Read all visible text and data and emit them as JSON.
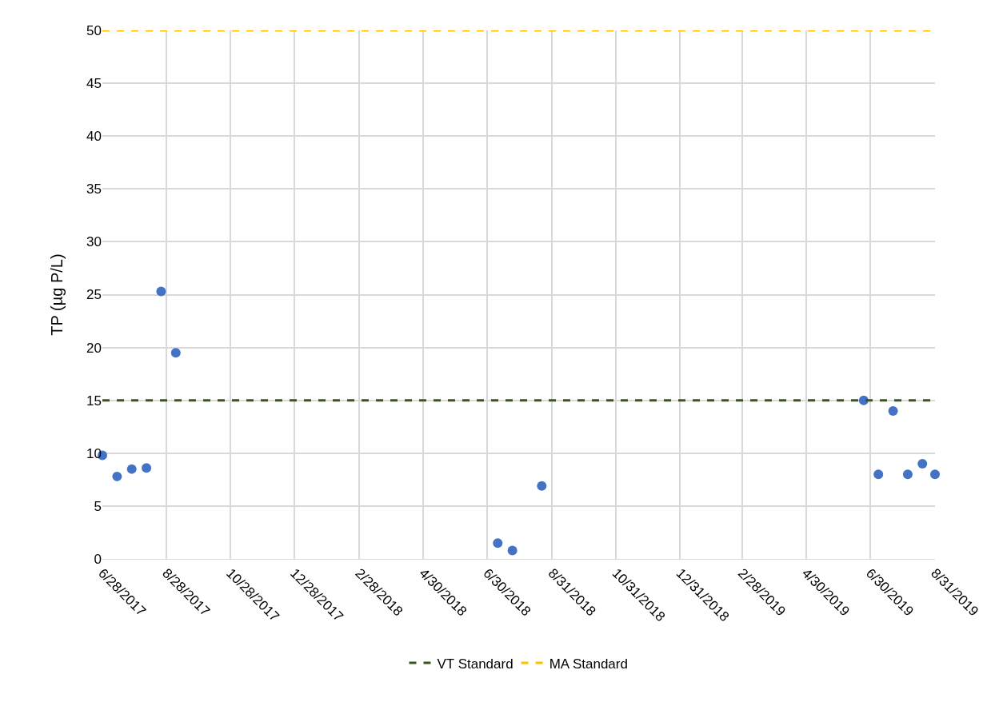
{
  "chart_data": {
    "type": "scatter",
    "ylabel": "TP (µg P/L)",
    "x": [
      "2017-06-28",
      "2017-07-12",
      "2017-07-26",
      "2017-08-09",
      "2017-08-23",
      "2017-09-06",
      "2018-07-10",
      "2018-07-24",
      "2018-08-21",
      "2019-06-24",
      "2019-07-08",
      "2019-07-22",
      "2019-08-05",
      "2019-08-19",
      "2019-08-31"
    ],
    "series": [
      {
        "color": "#4472c4",
        "values": [
          9.8,
          7.8,
          8.5,
          8.6,
          25.3,
          19.5,
          1.5,
          0.8,
          6.9,
          15.0,
          8.0,
          14.0,
          8.0,
          9.0,
          8.0
        ]
      }
    ],
    "marker": "circle",
    "xlim": [
      "2017-06-28",
      "2019-08-31"
    ],
    "xticks": [
      {
        "value": "2017-06-28",
        "label": "6/28/2017"
      },
      {
        "value": "2017-08-28",
        "label": "8/28/2017"
      },
      {
        "value": "2017-10-28",
        "label": "10/28/2017"
      },
      {
        "value": "2017-12-28",
        "label": "12/28/2017"
      },
      {
        "value": "2018-02-28",
        "label": "2/28/2018"
      },
      {
        "value": "2018-04-30",
        "label": "4/30/2018"
      },
      {
        "value": "2018-06-30",
        "label": "6/30/2018"
      },
      {
        "value": "2018-08-31",
        "label": "8/31/2018"
      },
      {
        "value": "2018-10-31",
        "label": "10/31/2018"
      },
      {
        "value": "2018-12-31",
        "label": "12/31/2018"
      },
      {
        "value": "2019-02-28",
        "label": "2/28/2019"
      },
      {
        "value": "2019-04-30",
        "label": "4/30/2019"
      },
      {
        "value": "2019-06-30",
        "label": "6/30/2019"
      },
      {
        "value": "2019-08-31",
        "label": "8/31/2019"
      }
    ],
    "ylim": [
      0,
      50
    ],
    "yticks": [
      0,
      5,
      10,
      15,
      20,
      25,
      30,
      35,
      40,
      45,
      50
    ],
    "ref_lines": [
      {
        "axis": "y",
        "value": 15,
        "label": "VT Standard",
        "color": "#375623",
        "line_style": "dashed"
      },
      {
        "axis": "y",
        "value": 50,
        "label": "MA Standard",
        "color": "#ffc000",
        "line_style": "dashed"
      }
    ],
    "grid": true,
    "legend": "bottom"
  }
}
